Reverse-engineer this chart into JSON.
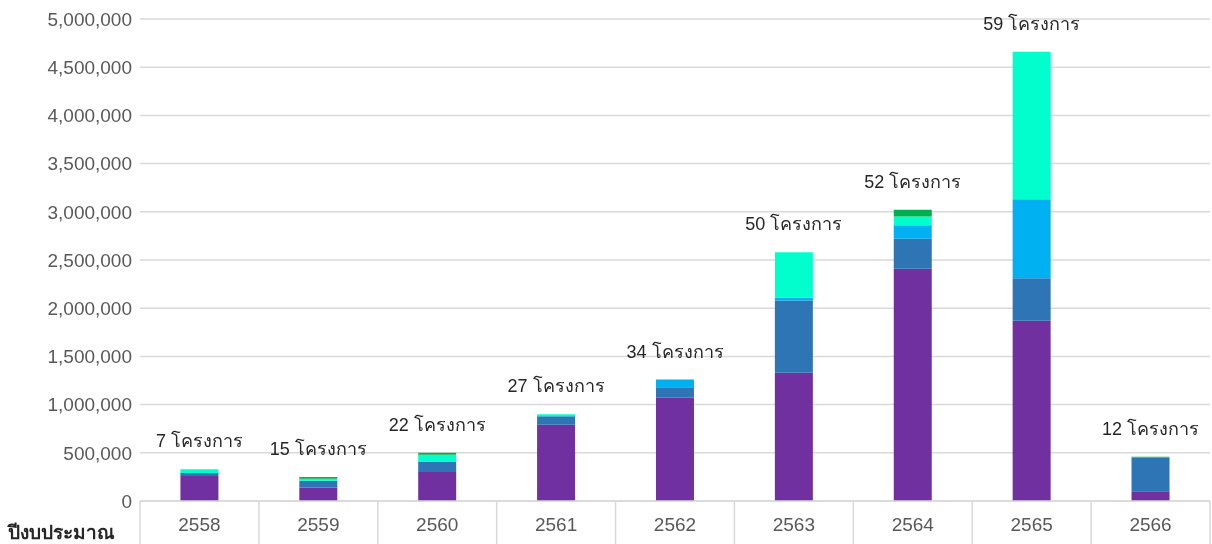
{
  "chart_data": {
    "type": "bar",
    "xlabel": "ปีงบประมาณ",
    "categories": [
      "2558",
      "2559",
      "2560",
      "2561",
      "2562",
      "2563",
      "2564",
      "2565",
      "2566"
    ],
    "series": [
      {
        "color": "#7030a0",
        "values": [
          260000,
          140000,
          300000,
          790000,
          1070000,
          1330000,
          2410000,
          1870000,
          100000
        ]
      },
      {
        "color": "#2e75b6",
        "values": [
          30000,
          70000,
          110000,
          90000,
          110000,
          750000,
          310000,
          440000,
          350000
        ]
      },
      {
        "color": "#00b0f0",
        "values": [
          null,
          null,
          null,
          null,
          80000,
          30000,
          140000,
          820000,
          null
        ]
      },
      {
        "color": "#00ffcc",
        "values": [
          40000,
          20000,
          70000,
          20000,
          null,
          470000,
          90000,
          1530000,
          null
        ]
      },
      {
        "color": "#00b050",
        "values": [
          null,
          20000,
          20000,
          null,
          null,
          null,
          70000,
          null,
          10000
        ]
      }
    ],
    "stacked": true,
    "annotations": [
      {
        "text": "7 โครงการ",
        "x": "2558",
        "y": 330000
      },
      {
        "text": "15 โครงการ",
        "x": "2559",
        "y": 250000
      },
      {
        "text": "22 โครงการ",
        "x": "2560",
        "y": 500000
      },
      {
        "text": "27 โครงการ",
        "x": "2561",
        "y": 900000
      },
      {
        "text": "34 โครงการ",
        "x": "2562",
        "y": 1260000
      },
      {
        "text": "50 โครงการ",
        "x": "2563",
        "y": 2580000
      },
      {
        "text": "52 โครงการ",
        "x": "2564",
        "y": 3020000
      },
      {
        "text": "59 โครงการ",
        "x": "2565",
        "y": 4660000
      },
      {
        "text": "12 โครงการ",
        "x": "2566",
        "y": 460000
      }
    ],
    "ylim": [
      0,
      5000000
    ],
    "yticks": [
      {
        "value": 0,
        "label": "0"
      },
      {
        "value": 500000,
        "label": "500,000"
      },
      {
        "value": 1000000,
        "label": "1,000,000"
      },
      {
        "value": 1500000,
        "label": "1,500,000"
      },
      {
        "value": 2000000,
        "label": "2,000,000"
      },
      {
        "value": 2500000,
        "label": "2,500,000"
      },
      {
        "value": 3000000,
        "label": "3,000,000"
      },
      {
        "value": 3500000,
        "label": "3,500,000"
      },
      {
        "value": 4000000,
        "label": "4,000,000"
      },
      {
        "value": 4500000,
        "label": "4,500,000"
      },
      {
        "value": 5000000,
        "label": "5,000,000"
      }
    ],
    "grid": "y",
    "legend": false
  }
}
